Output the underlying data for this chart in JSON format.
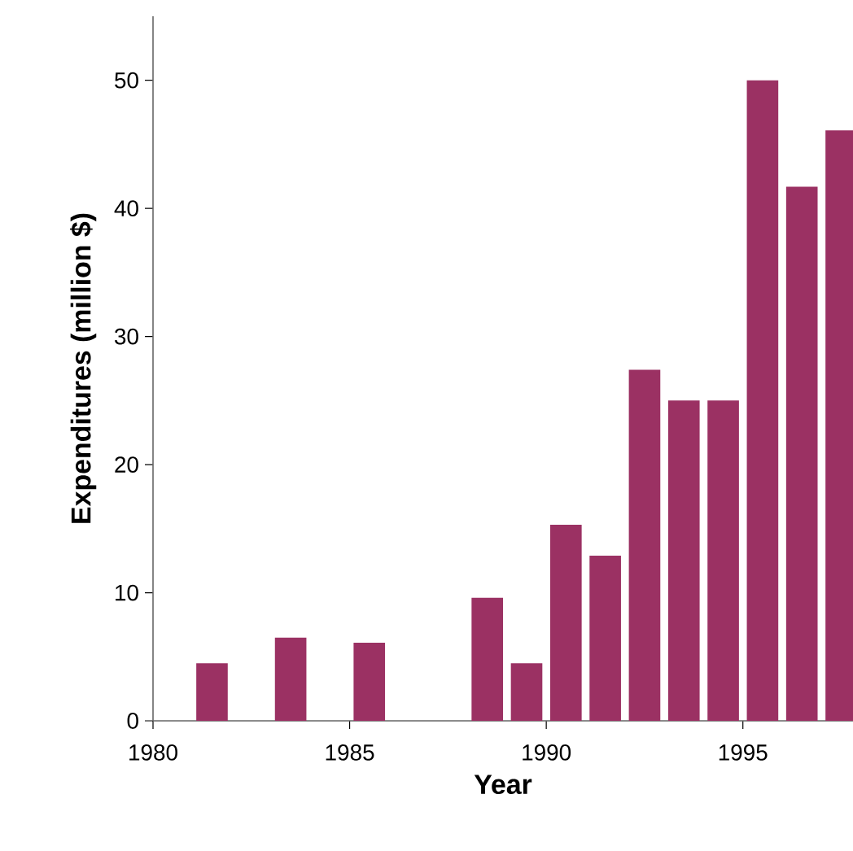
{
  "chart_data": {
    "type": "bar",
    "xlabel": "Year",
    "ylabel": "Expenditures (million $)",
    "x": [
      1981.5,
      1983.5,
      1985.5,
      1988.5,
      1989.5,
      1990.5,
      1991.5,
      1992.5,
      1993.5,
      1994.5,
      1995.5,
      1996.5,
      1997.5
    ],
    "values": [
      4.5,
      6.5,
      6.1,
      9.6,
      4.5,
      15.3,
      12.9,
      27.4,
      25.0,
      25.0,
      50.0,
      41.7,
      46.1
    ],
    "color": "#9b3163",
    "xlim": [
      1980,
      1997.8
    ],
    "xticks": [
      1980,
      1985,
      1990,
      1995
    ],
    "ylim": [
      0,
      55
    ],
    "yticks": [
      0,
      10,
      20,
      30,
      40,
      50
    ],
    "grid": false
  }
}
